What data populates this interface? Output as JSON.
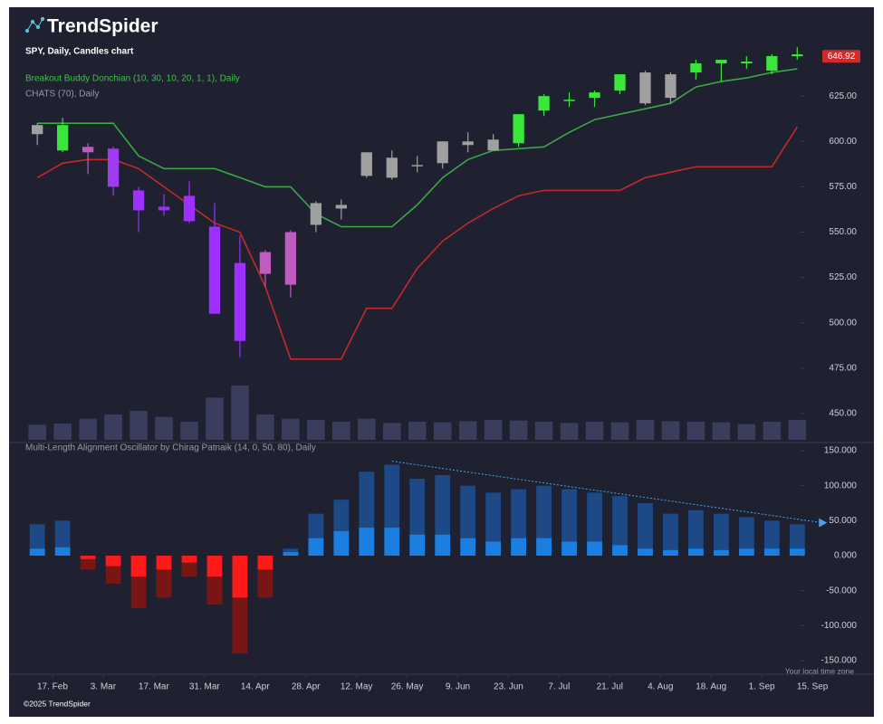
{
  "brand": {
    "logo": "TrendSpider",
    "copyright": "©2025 TrendSpider",
    "timezone_note": "Your local time zone"
  },
  "chart_data": [
    {
      "type": "candlestick",
      "title": "SPY, Daily, Candles chart",
      "categories": [
        null,
        "17. Feb",
        null,
        "3. Mar",
        null,
        "17. Mar",
        null,
        "31. Mar",
        null,
        "14. Apr",
        null,
        "28. Apr",
        null,
        "12. May",
        null,
        "26. May",
        null,
        "9. Jun",
        null,
        "23. Jun",
        null,
        "7. Jul",
        null,
        "21. Jul",
        null,
        "4. Aug",
        null,
        "18. Aug",
        null,
        "1. Sep",
        null,
        "15. Sep"
      ],
      "open": [
        604,
        609,
        597,
        596,
        573,
        562,
        570,
        553,
        490,
        539,
        521,
        554,
        563,
        581,
        591,
        587,
        588,
        600,
        601,
        599,
        617,
        623,
        624,
        628,
        638,
        624,
        638,
        643,
        644,
        639,
        648,
        null
      ],
      "high": [
        610,
        613,
        599,
        597,
        575,
        571,
        578,
        566,
        548,
        540,
        551,
        567,
        568,
        594,
        595,
        592,
        600,
        605,
        604,
        615,
        626,
        627,
        628,
        637,
        639,
        638,
        645,
        645,
        647,
        648,
        652,
        null
      ],
      "low": [
        598,
        594,
        582,
        570,
        550,
        559,
        555,
        505,
        481,
        520,
        514,
        550,
        557,
        580,
        579,
        583,
        585,
        594,
        595,
        597,
        614,
        619,
        619,
        626,
        620,
        621,
        634,
        633,
        640,
        637,
        645,
        null
      ],
      "close": [
        609,
        595,
        594,
        575,
        562,
        564,
        556,
        505,
        533,
        527,
        550,
        566,
        565,
        594,
        580,
        587,
        600,
        598,
        595,
        615,
        625,
        623,
        627,
        637,
        621,
        637,
        643,
        645,
        643,
        647,
        646.92,
        null
      ],
      "candle_colors": [
        "#a0a0a0",
        "#39e639",
        "#c05cc0",
        "#a03cf0",
        "#9b30ff",
        "#9b30ff",
        "#9b30ff",
        "#9b30ff",
        "#9b30ff",
        "#c05cc0",
        "#c05cc0",
        "#a0a0a0",
        "#a0a0a0",
        "#a0a0a0",
        "#a0a0a0",
        "#a0a0a0",
        "#a0a0a0",
        "#a0a0a0",
        "#a0a0a0",
        "#39e639",
        "#39e639",
        "#39e639",
        "#39e639",
        "#39e639",
        "#a0a0a0",
        "#a0a0a0",
        "#39e639",
        "#39e639",
        "#39e639",
        "#39e639",
        "#39e639",
        null
      ],
      "volume": [
        250,
        270,
        350,
        420,
        480,
        380,
        300,
        700,
        900,
        420,
        350,
        330,
        300,
        350,
        280,
        300,
        290,
        310,
        330,
        320,
        300,
        280,
        300,
        290,
        330,
        310,
        300,
        290,
        260,
        300,
        330,
        null
      ],
      "volume_color": "#3a3d5c",
      "series": [
        {
          "name": "Breakout Buddy Donchian (10, 30, 10, 20, 1, 1), Daily",
          "color": "#3aa845",
          "label_color": "#3ec24a",
          "values": [
            610,
            610,
            610,
            610,
            592,
            585,
            585,
            585,
            580,
            575,
            575,
            560,
            553,
            553,
            553,
            565,
            580,
            590,
            595,
            596,
            597,
            605,
            612,
            615,
            618,
            621,
            630,
            633,
            635,
            638,
            640,
            null
          ]
        },
        {
          "name": "CHATS (70), Daily",
          "color": "#c22a2a",
          "label_color": "#9a9aa6",
          "values": [
            580,
            588,
            590,
            590,
            585,
            575,
            565,
            555,
            550,
            520,
            480,
            480,
            480,
            508,
            508,
            530,
            545,
            555,
            563,
            570,
            573,
            573,
            573,
            573,
            580,
            583,
            586,
            586,
            586,
            586,
            608,
            null
          ]
        }
      ],
      "ylim": [
        434.5,
        658
      ],
      "yticks": [
        {
          "value": 625,
          "label": "625.00"
        },
        {
          "value": 600,
          "label": "600.00"
        },
        {
          "value": 575,
          "label": "575.00"
        },
        {
          "value": 550,
          "label": "550.00"
        },
        {
          "value": 525,
          "label": "525.00"
        },
        {
          "value": 500,
          "label": "500.00"
        },
        {
          "value": 475,
          "label": "475.00"
        },
        {
          "value": 450,
          "label": "450.00"
        }
      ],
      "grid": false,
      "price_tag_color": "#d62828"
    },
    {
      "type": "bar",
      "title": "Multi-Length Alignment Oscillator by Chirag Patnaik (14, 0, 50, 80), Daily",
      "series": [
        {
          "color_positive": "#1d4a86",
          "color_negative": "#7a1515",
          "values": [
            45,
            50,
            -20,
            -40,
            -75,
            -60,
            -30,
            -70,
            -140,
            -60,
            10,
            60,
            80,
            120,
            130,
            110,
            115,
            100,
            90,
            95,
            100,
            95,
            90,
            85,
            75,
            60,
            65,
            60,
            55,
            50,
            45,
            null
          ]
        },
        {
          "color_positive": "#1a7fe0",
          "color_negative": "#ff1a1a",
          "values": [
            10,
            12,
            -5,
            -15,
            -30,
            -20,
            -10,
            -30,
            -60,
            -20,
            5,
            25,
            35,
            40,
            40,
            30,
            30,
            25,
            20,
            25,
            25,
            20,
            20,
            15,
            10,
            8,
            10,
            8,
            10,
            10,
            10,
            null
          ]
        }
      ],
      "trendline": {
        "values": [
          135,
          47
        ],
        "color": "#4aa3e8"
      },
      "ylim": [
        -169.5,
        157.8
      ],
      "yticks": [
        {
          "value": 150,
          "label": "150.000"
        },
        {
          "value": 100,
          "label": "100.000"
        },
        {
          "value": 50,
          "label": "50.000"
        },
        {
          "value": 0,
          "label": "0.000"
        },
        {
          "value": -50,
          "label": "-50.000"
        },
        {
          "value": -100,
          "label": "-100.000"
        },
        {
          "value": -150,
          "label": "-150.000"
        }
      ],
      "grid": false
    }
  ]
}
